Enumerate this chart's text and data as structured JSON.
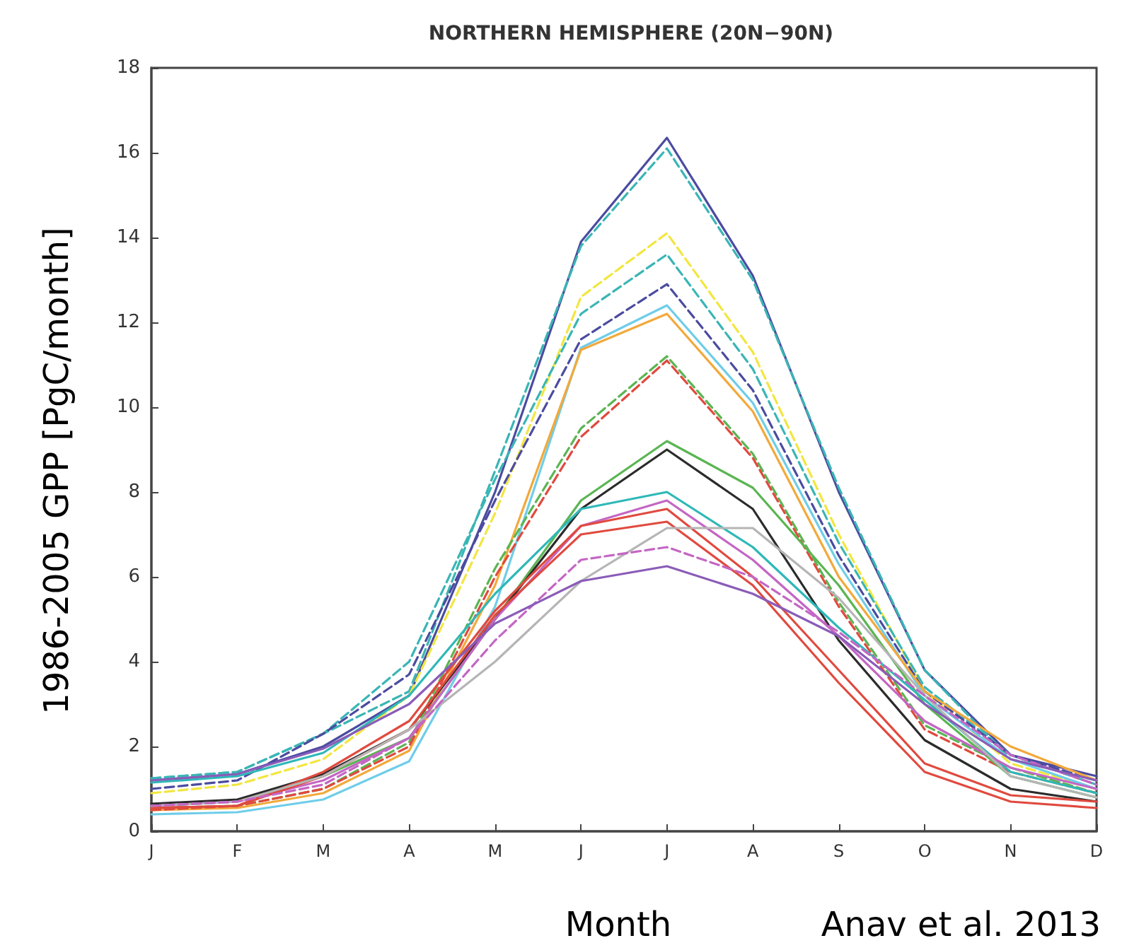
{
  "chart_data": {
    "type": "line",
    "title": "NORTHERN HEMISPHERE (20N−90N)",
    "xlabel": "Month",
    "ylabel": "1986-2005 GPP [PgC/month]",
    "annotations": [
      "Anav et al. 2013"
    ],
    "categories": [
      "J",
      "F",
      "M",
      "A",
      "M",
      "J",
      "J",
      "A",
      "S",
      "O",
      "N",
      "D"
    ],
    "ylim": [
      0,
      18
    ],
    "yticks": [
      0,
      2,
      4,
      6,
      8,
      10,
      12,
      14,
      16,
      18
    ],
    "grid": false,
    "marker": "none",
    "series": [
      {
        "color": "#4b4ba0",
        "line_style": "solid",
        "values": [
          1.2,
          1.35,
          2.0,
          3.2,
          8.0,
          13.9,
          16.35,
          13.1,
          8.0,
          3.8,
          1.8,
          1.3
        ]
      },
      {
        "color": "#3ab5b5",
        "line_style": "dashed",
        "values": [
          1.25,
          1.4,
          2.3,
          3.3,
          8.5,
          13.8,
          16.1,
          13.0,
          8.1,
          3.8,
          1.7,
          1.2
        ]
      },
      {
        "color": "#f2e640",
        "line_style": "dashed",
        "values": [
          0.9,
          1.1,
          1.7,
          3.2,
          7.5,
          12.6,
          14.1,
          11.3,
          7.0,
          3.3,
          1.6,
          1.0
        ]
      },
      {
        "color": "#3ab5b5",
        "line_style": "dashed",
        "values": [
          1.25,
          1.4,
          2.3,
          4.0,
          8.3,
          12.2,
          13.6,
          10.9,
          6.8,
          3.4,
          1.8,
          1.1
        ]
      },
      {
        "color": "#4b4ba0",
        "line_style": "dashed",
        "values": [
          1.0,
          1.2,
          2.3,
          3.7,
          7.8,
          11.6,
          12.9,
          10.4,
          6.5,
          3.3,
          1.8,
          1.2
        ]
      },
      {
        "color": "#6fcde8",
        "line_style": "solid",
        "values": [
          0.4,
          0.45,
          0.75,
          1.65,
          5.3,
          11.4,
          12.4,
          10.1,
          6.3,
          3.2,
          1.7,
          1.0
        ]
      },
      {
        "color": "#f2a93b",
        "line_style": "solid",
        "values": [
          0.5,
          0.55,
          0.9,
          1.9,
          5.8,
          11.35,
          12.2,
          9.9,
          6.0,
          3.3,
          2.0,
          1.2
        ]
      },
      {
        "color": "#5ab552",
        "line_style": "dashed",
        "values": [
          0.55,
          0.6,
          1.0,
          2.1,
          6.2,
          9.5,
          11.2,
          8.9,
          5.4,
          2.5,
          1.5,
          0.9
        ]
      },
      {
        "color": "#e04a3f",
        "line_style": "dashed",
        "values": [
          0.5,
          0.6,
          1.0,
          2.0,
          6.0,
          9.3,
          11.1,
          8.8,
          5.3,
          2.4,
          1.4,
          0.9
        ]
      },
      {
        "color": "#5ab552",
        "line_style": "solid",
        "values": [
          0.6,
          0.7,
          1.3,
          2.2,
          5.0,
          7.8,
          9.2,
          8.1,
          5.8,
          3.0,
          1.3,
          0.8
        ]
      },
      {
        "color": "#2b2b2b",
        "line_style": "solid",
        "values": [
          0.65,
          0.75,
          1.35,
          2.4,
          5.0,
          7.6,
          9.0,
          7.6,
          4.5,
          2.15,
          1.0,
          0.7
        ]
      },
      {
        "color": "#2fb8b8",
        "line_style": "solid",
        "values": [
          1.15,
          1.3,
          1.85,
          3.2,
          5.6,
          7.6,
          8.0,
          6.7,
          4.8,
          3.1,
          1.4,
          0.9
        ]
      },
      {
        "color": "#c466c4",
        "line_style": "solid",
        "values": [
          0.6,
          0.7,
          1.2,
          2.2,
          5.0,
          7.2,
          7.8,
          6.4,
          4.6,
          2.6,
          1.5,
          1.0
        ]
      },
      {
        "color": "#e04a3f",
        "line_style": "solid",
        "values": [
          0.55,
          0.6,
          1.4,
          2.6,
          5.2,
          7.2,
          7.6,
          6.0,
          3.8,
          1.6,
          0.85,
          0.7
        ]
      },
      {
        "color": "#e04a3f",
        "line_style": "solid",
        "values": [
          0.55,
          0.6,
          1.3,
          2.4,
          5.1,
          7.0,
          7.3,
          5.8,
          3.5,
          1.4,
          0.7,
          0.55
        ]
      },
      {
        "color": "#b5b5b5",
        "line_style": "solid",
        "values": [
          0.6,
          0.7,
          1.3,
          2.4,
          4.0,
          5.9,
          7.15,
          7.15,
          5.5,
          3.2,
          1.3,
          0.8
        ]
      },
      {
        "color": "#c466c4",
        "line_style": "dashed",
        "values": [
          0.6,
          0.7,
          1.1,
          2.2,
          4.5,
          6.4,
          6.7,
          6.0,
          4.7,
          3.2,
          1.8,
          1.1
        ]
      },
      {
        "color": "#8a5cb8",
        "line_style": "solid",
        "values": [
          1.2,
          1.35,
          1.95,
          3.0,
          4.9,
          5.9,
          6.25,
          5.6,
          4.6,
          3.0,
          1.7,
          1.2
        ]
      }
    ]
  }
}
